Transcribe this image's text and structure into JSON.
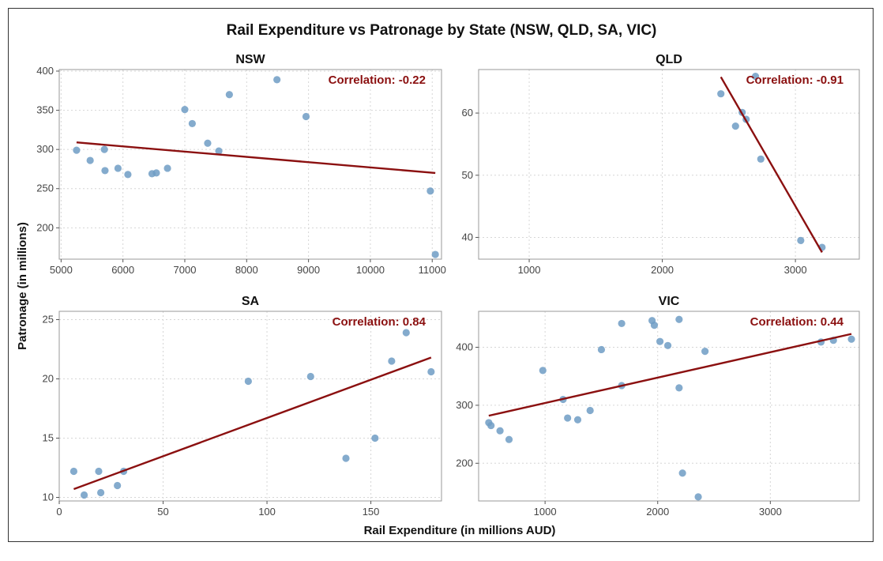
{
  "chart_data": {
    "type": "scatter",
    "title": "Rail Expenditure vs Patronage by State (NSW, QLD, SA, VIC)",
    "xlabel": "Rail Expenditure (in millions AUD)",
    "ylabel": "Patronage (in millions)",
    "grid": true,
    "point_color": "#6f9cc4",
    "line_color": "#8b1010",
    "corr_color": "#8b1010",
    "panels": [
      {
        "name": "NSW",
        "correlation_label": "Correlation: -0.22",
        "xlim": [
          4970,
          11150
        ],
        "ylim": [
          160,
          402
        ],
        "xticks": [
          5000,
          6000,
          7000,
          8000,
          9000,
          10000,
          11000
        ],
        "yticks": [
          200,
          250,
          300,
          350,
          400
        ],
        "trend": {
          "x": [
            5250,
            11050
          ],
          "y": [
            309,
            270
          ]
        },
        "points": [
          {
            "x": 5250,
            "y": 299
          },
          {
            "x": 5470,
            "y": 286
          },
          {
            "x": 5700,
            "y": 300
          },
          {
            "x": 5710,
            "y": 273
          },
          {
            "x": 5920,
            "y": 276
          },
          {
            "x": 6080,
            "y": 268
          },
          {
            "x": 6470,
            "y": 269
          },
          {
            "x": 6540,
            "y": 270
          },
          {
            "x": 6720,
            "y": 276
          },
          {
            "x": 7000,
            "y": 351
          },
          {
            "x": 7120,
            "y": 333
          },
          {
            "x": 7370,
            "y": 308
          },
          {
            "x": 7550,
            "y": 298
          },
          {
            "x": 7720,
            "y": 370
          },
          {
            "x": 8490,
            "y": 389
          },
          {
            "x": 8960,
            "y": 342
          },
          {
            "x": 10970,
            "y": 247
          },
          {
            "x": 11050,
            "y": 166
          }
        ]
      },
      {
        "name": "QLD",
        "correlation_label": "Correlation: -0.91",
        "xlim": [
          620,
          3480
        ],
        "ylim": [
          36.5,
          67
        ],
        "xticks": [
          1000,
          2000,
          3000
        ],
        "yticks": [
          40,
          50,
          60
        ],
        "trend": {
          "x": [
            2440,
            3200
          ],
          "y": [
            65.8,
            37.6
          ]
        },
        "points": [
          {
            "x": 2440,
            "y": 63.1
          },
          {
            "x": 2550,
            "y": 57.9
          },
          {
            "x": 2600,
            "y": 60.1
          },
          {
            "x": 2630,
            "y": 59.0
          },
          {
            "x": 2700,
            "y": 65.9
          },
          {
            "x": 2740,
            "y": 52.6
          },
          {
            "x": 3040,
            "y": 39.5
          },
          {
            "x": 3200,
            "y": 38.4
          }
        ]
      },
      {
        "name": "SA",
        "correlation_label": "Correlation: 0.84",
        "xlim": [
          0,
          184
        ],
        "ylim": [
          9.7,
          25.7
        ],
        "xticks": [
          0,
          50,
          100,
          150
        ],
        "yticks": [
          10,
          15,
          20,
          25
        ],
        "trend": {
          "x": [
            7,
            179
          ],
          "y": [
            10.7,
            21.8
          ]
        },
        "points": [
          {
            "x": 7,
            "y": 12.2
          },
          {
            "x": 12,
            "y": 10.2
          },
          {
            "x": 19,
            "y": 12.2
          },
          {
            "x": 20,
            "y": 10.4
          },
          {
            "x": 28,
            "y": 11.0
          },
          {
            "x": 31,
            "y": 12.2
          },
          {
            "x": 91,
            "y": 19.8
          },
          {
            "x": 121,
            "y": 20.2
          },
          {
            "x": 138,
            "y": 13.3
          },
          {
            "x": 152,
            "y": 15.0
          },
          {
            "x": 160,
            "y": 21.5
          },
          {
            "x": 167,
            "y": 23.9
          },
          {
            "x": 179,
            "y": 20.6
          }
        ]
      },
      {
        "name": "VIC",
        "correlation_label": "Correlation: 0.44",
        "xlim": [
          410,
          3790
        ],
        "ylim": [
          135,
          462
        ],
        "xticks": [
          1000,
          2000,
          3000
        ],
        "yticks": [
          200,
          300,
          400
        ],
        "trend": {
          "x": [
            500,
            3720
          ],
          "y": [
            282,
            423
          ]
        },
        "points": [
          {
            "x": 500,
            "y": 270
          },
          {
            "x": 520,
            "y": 265
          },
          {
            "x": 600,
            "y": 256
          },
          {
            "x": 680,
            "y": 241
          },
          {
            "x": 980,
            "y": 360
          },
          {
            "x": 1160,
            "y": 310
          },
          {
            "x": 1200,
            "y": 278
          },
          {
            "x": 1290,
            "y": 275
          },
          {
            "x": 1400,
            "y": 291
          },
          {
            "x": 1500,
            "y": 396
          },
          {
            "x": 1680,
            "y": 441
          },
          {
            "x": 1680,
            "y": 334
          },
          {
            "x": 1950,
            "y": 446
          },
          {
            "x": 1970,
            "y": 438
          },
          {
            "x": 2020,
            "y": 410
          },
          {
            "x": 2090,
            "y": 403
          },
          {
            "x": 2190,
            "y": 448
          },
          {
            "x": 2190,
            "y": 330
          },
          {
            "x": 2220,
            "y": 183
          },
          {
            "x": 2360,
            "y": 142
          },
          {
            "x": 2420,
            "y": 393
          },
          {
            "x": 3450,
            "y": 409
          },
          {
            "x": 3560,
            "y": 412
          },
          {
            "x": 3720,
            "y": 414
          }
        ]
      }
    ]
  }
}
